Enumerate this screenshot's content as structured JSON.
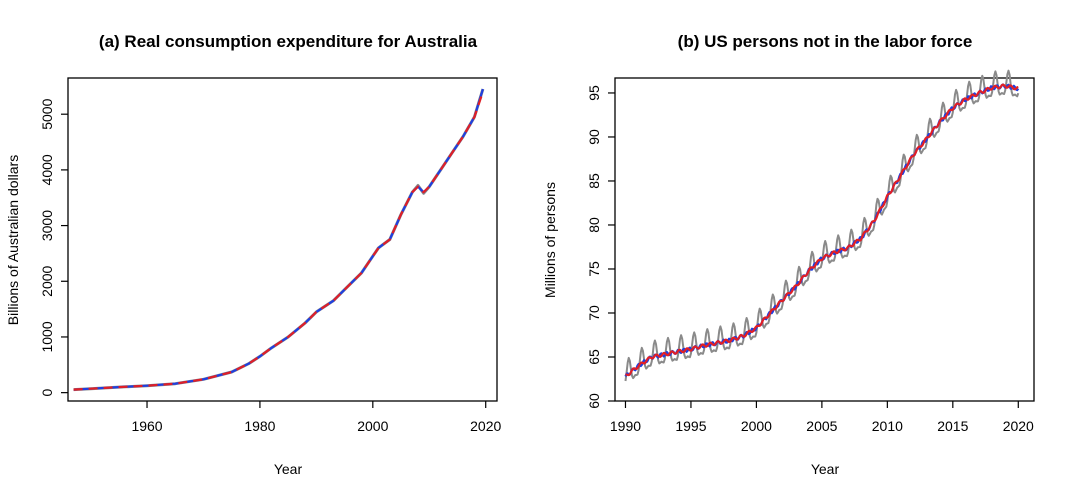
{
  "colors": {
    "original": "#8a8a8a",
    "smooth_a": "#1f3fe0",
    "smooth_b": "#e01f26"
  },
  "chart_data": [
    {
      "type": "line",
      "title": "(a) Real consumption expenditure for Australia",
      "xlabel": "Year",
      "ylabel": "Billions of Australian dollars",
      "xlim": [
        1946,
        2022
      ],
      "ylim": [
        -150,
        5650
      ],
      "xticks": [
        1960,
        1980,
        2000,
        2020
      ],
      "yticks": [
        0,
        1000,
        2000,
        3000,
        4000,
        5000
      ],
      "grid": false,
      "legend": "none",
      "series": [
        {
          "color": "#8a8a8a",
          "x": [
            1947,
            1950,
            1955,
            1960,
            1965,
            1970,
            1975,
            1978,
            1980,
            1982,
            1985,
            1988,
            1990,
            1993,
            1995,
            1998,
            2000,
            2001,
            2003,
            2005,
            2007,
            2008,
            2009,
            2010,
            2012,
            2014,
            2016,
            2018,
            2019.5
          ],
          "y": [
            55,
            70,
            100,
            125,
            160,
            240,
            370,
            520,
            650,
            800,
            1000,
            1250,
            1450,
            1650,
            1850,
            2150,
            2450,
            2600,
            2750,
            3200,
            3600,
            3720,
            3580,
            3700,
            4000,
            4300,
            4600,
            4950,
            5450
          ]
        },
        {
          "color": "#1f3fe0",
          "x": [
            1947,
            1950,
            1955,
            1960,
            1965,
            1970,
            1975,
            1978,
            1980,
            1982,
            1985,
            1988,
            1990,
            1993,
            1995,
            1998,
            2000,
            2001,
            2003,
            2005,
            2007,
            2008,
            2009,
            2010,
            2012,
            2014,
            2016,
            2018,
            2019.5
          ],
          "y": [
            55,
            70,
            100,
            125,
            160,
            240,
            370,
            520,
            650,
            800,
            1000,
            1250,
            1450,
            1650,
            1850,
            2150,
            2450,
            2600,
            2750,
            3200,
            3600,
            3700,
            3600,
            3700,
            4000,
            4300,
            4600,
            4950,
            5450
          ]
        },
        {
          "color": "#e01f26",
          "dashed": true,
          "x": [
            1947,
            1950,
            1955,
            1960,
            1965,
            1970,
            1975,
            1978,
            1980,
            1982,
            1985,
            1988,
            1990,
            1993,
            1995,
            1998,
            2000,
            2001,
            2003,
            2005,
            2007,
            2008,
            2009,
            2010,
            2012,
            2014,
            2016,
            2018,
            2019.5
          ],
          "y": [
            55,
            70,
            100,
            125,
            160,
            240,
            370,
            520,
            650,
            800,
            1000,
            1250,
            1450,
            1650,
            1850,
            2150,
            2450,
            2600,
            2750,
            3200,
            3600,
            3700,
            3600,
            3700,
            4000,
            4300,
            4600,
            4950,
            5400
          ]
        }
      ]
    },
    {
      "type": "line",
      "title": "(b) US persons not in the labor force",
      "xlabel": "Year",
      "ylabel": "Millions of persons",
      "xlim": [
        1989.2,
        2021.2
      ],
      "ylim": [
        60,
        96.7
      ],
      "xticks": [
        1990,
        1995,
        2000,
        2005,
        2010,
        2015,
        2020
      ],
      "yticks": [
        60,
        65,
        70,
        75,
        80,
        85,
        90,
        95
      ],
      "grid": false,
      "legend": "none",
      "trend": {
        "x": [
          1990,
          1991,
          1992,
          1993,
          1994,
          1995,
          1996,
          1997,
          1998,
          1999,
          2000,
          2001,
          2002,
          2003,
          2004,
          2005,
          2006,
          2007,
          2008,
          2009,
          2010,
          2011,
          2012,
          2013,
          2014,
          2015,
          2016,
          2017,
          2018,
          2019,
          2020
        ],
        "y": [
          62.8,
          64.0,
          65.0,
          65.3,
          65.6,
          65.9,
          66.3,
          66.6,
          66.9,
          67.4,
          68.3,
          69.9,
          71.5,
          73.0,
          74.8,
          76.2,
          76.9,
          77.4,
          78.5,
          80.5,
          83.2,
          85.6,
          88.0,
          89.8,
          91.7,
          93.3,
          94.3,
          95.0,
          95.6,
          95.8,
          95.5
        ]
      },
      "seasonal_amplitude": 1.5,
      "series": [
        {
          "color": "#8a8a8a"
        },
        {
          "color": "#1f3fe0"
        },
        {
          "color": "#e01f26"
        }
      ]
    }
  ]
}
